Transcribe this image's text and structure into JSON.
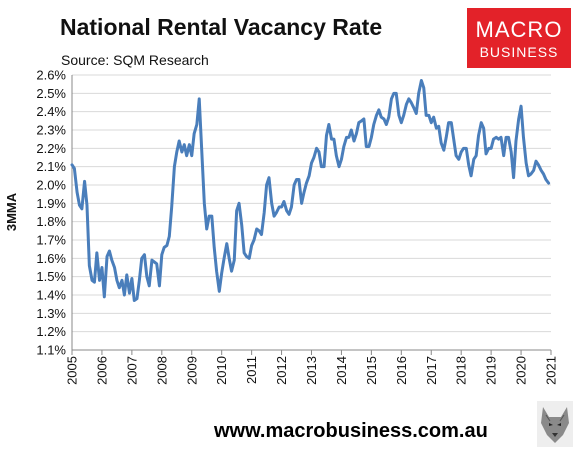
{
  "header": {
    "title": "National Rental Vacancy Rate",
    "subtitle": "Source: SQM Research"
  },
  "logo": {
    "line1": "MACRO",
    "line2": "BUSINESS"
  },
  "footer": {
    "website": "www.macrobusiness.com.au"
  },
  "chart_data": {
    "type": "line",
    "title": "National Rental Vacancy Rate",
    "ylabel": "3MMA",
    "xlabel": "",
    "xlim": [
      2005,
      2021
    ],
    "ylim": [
      1.1,
      2.6
    ],
    "grid": "horizontal",
    "legend": "none",
    "line_color": "#4a7ebb",
    "y_ticks": [
      "1.1%",
      "1.2%",
      "1.3%",
      "1.4%",
      "1.5%",
      "1.6%",
      "1.7%",
      "1.8%",
      "1.9%",
      "2.0%",
      "2.1%",
      "2.2%",
      "2.3%",
      "2.4%",
      "2.5%",
      "2.6%"
    ],
    "x_ticks": [
      "2005",
      "2006",
      "2007",
      "2008",
      "2009",
      "2010",
      "2011",
      "2012",
      "2013",
      "2014",
      "2015",
      "2016",
      "2017",
      "2018",
      "2019",
      "2020",
      "2021"
    ],
    "series": [
      {
        "x": [
          2005.0,
          2005.08,
          2005.17,
          2005.25,
          2005.33,
          2005.42,
          2005.5,
          2005.58,
          2005.67,
          2005.75,
          2005.83,
          2005.92,
          2006.0,
          2006.08,
          2006.17,
          2006.25,
          2006.33,
          2006.42,
          2006.5,
          2006.58,
          2006.67,
          2006.75,
          2006.83,
          2006.92,
          2007.0,
          2007.08,
          2007.17,
          2007.25,
          2007.33,
          2007.42,
          2007.5,
          2007.58,
          2007.67,
          2007.75,
          2007.83,
          2007.92,
          2008.0,
          2008.08,
          2008.17,
          2008.25,
          2008.33,
          2008.42,
          2008.5,
          2008.58,
          2008.67,
          2008.75,
          2008.83,
          2008.92,
          2009.0,
          2009.08,
          2009.17,
          2009.25,
          2009.33,
          2009.42,
          2009.5,
          2009.58,
          2009.67,
          2009.75,
          2009.83,
          2009.92,
          2010.0,
          2010.08,
          2010.17,
          2010.25,
          2010.33,
          2010.42,
          2010.5,
          2010.58,
          2010.67,
          2010.75,
          2010.83,
          2010.92,
          2011.0,
          2011.08,
          2011.17,
          2011.25,
          2011.33,
          2011.42,
          2011.5,
          2011.58,
          2011.67,
          2011.75,
          2011.83,
          2011.92,
          2012.0,
          2012.08,
          2012.17,
          2012.25,
          2012.33,
          2012.42,
          2012.5,
          2012.58,
          2012.67,
          2012.75,
          2012.83,
          2012.92,
          2013.0,
          2013.08,
          2013.17,
          2013.25,
          2013.33,
          2013.42,
          2013.5,
          2013.58,
          2013.67,
          2013.75,
          2013.83,
          2013.92,
          2014.0,
          2014.08,
          2014.17,
          2014.25,
          2014.33,
          2014.42,
          2014.5,
          2014.58,
          2014.67,
          2014.75,
          2014.83,
          2014.92,
          2015.0,
          2015.08,
          2015.17,
          2015.25,
          2015.33,
          2015.42,
          2015.5,
          2015.58,
          2015.67,
          2015.75,
          2015.83,
          2015.92,
          2016.0,
          2016.08,
          2016.17,
          2016.25,
          2016.33,
          2016.42,
          2016.5,
          2016.58,
          2016.67,
          2016.75,
          2016.83,
          2016.92,
          2017.0,
          2017.08,
          2017.17,
          2017.25,
          2017.33,
          2017.42,
          2017.5,
          2017.58,
          2017.67,
          2017.75,
          2017.83,
          2017.92,
          2018.0,
          2018.08,
          2018.17,
          2018.25,
          2018.33,
          2018.42,
          2018.5,
          2018.58,
          2018.67,
          2018.75,
          2018.83,
          2018.92,
          2019.0,
          2019.08,
          2019.17,
          2019.25,
          2019.33,
          2019.42,
          2019.5,
          2019.58,
          2019.67,
          2019.75,
          2019.83,
          2019.92,
          2020.0,
          2020.08,
          2020.17,
          2020.25,
          2020.33,
          2020.42,
          2020.5,
          2020.58,
          2020.67,
          2020.75,
          2020.83,
          2020.92
        ],
        "values": [
          2.11,
          2.09,
          1.96,
          1.89,
          1.87,
          2.02,
          1.89,
          1.56,
          1.48,
          1.47,
          1.63,
          1.48,
          1.55,
          1.39,
          1.61,
          1.64,
          1.59,
          1.55,
          1.48,
          1.44,
          1.48,
          1.4,
          1.51,
          1.41,
          1.49,
          1.37,
          1.38,
          1.48,
          1.6,
          1.62,
          1.5,
          1.45,
          1.59,
          1.58,
          1.57,
          1.45,
          1.62,
          1.66,
          1.67,
          1.72,
          1.88,
          2.1,
          2.18,
          2.24,
          2.18,
          2.22,
          2.16,
          2.22,
          2.16,
          2.28,
          2.33,
          2.47,
          2.2,
          1.9,
          1.76,
          1.83,
          1.83,
          1.66,
          1.53,
          1.42,
          1.52,
          1.6,
          1.68,
          1.6,
          1.53,
          1.59,
          1.86,
          1.9,
          1.78,
          1.63,
          1.61,
          1.6,
          1.67,
          1.7,
          1.76,
          1.75,
          1.73,
          1.85,
          2.0,
          2.04,
          1.9,
          1.83,
          1.85,
          1.88,
          1.88,
          1.91,
          1.86,
          1.84,
          1.88,
          2.0,
          2.03,
          2.03,
          1.9,
          1.96,
          2.01,
          2.05,
          2.12,
          2.15,
          2.2,
          2.18,
          2.1,
          2.1,
          2.27,
          2.33,
          2.25,
          2.25,
          2.16,
          2.1,
          2.14,
          2.21,
          2.26,
          2.26,
          2.3,
          2.24,
          2.28,
          2.34,
          2.35,
          2.36,
          2.21,
          2.21,
          2.26,
          2.33,
          2.38,
          2.41,
          2.37,
          2.36,
          2.33,
          2.37,
          2.47,
          2.5,
          2.5,
          2.38,
          2.34,
          2.38,
          2.44,
          2.47,
          2.45,
          2.42,
          2.39,
          2.5,
          2.57,
          2.53,
          2.38,
          2.38,
          2.34,
          2.37,
          2.31,
          2.32,
          2.23,
          2.19,
          2.26,
          2.34,
          2.34,
          2.25,
          2.16,
          2.14,
          2.18,
          2.2,
          2.2,
          2.11,
          2.05,
          2.14,
          2.16,
          2.27,
          2.34,
          2.31,
          2.17,
          2.2,
          2.2,
          2.25,
          2.26,
          2.25,
          2.26,
          2.16,
          2.26,
          2.26,
          2.18,
          2.04,
          2.24,
          2.36,
          2.43,
          2.26,
          2.12,
          2.05,
          2.06,
          2.08,
          2.13,
          2.11,
          2.08,
          2.06,
          2.03,
          2.01
        ]
      }
    ]
  }
}
